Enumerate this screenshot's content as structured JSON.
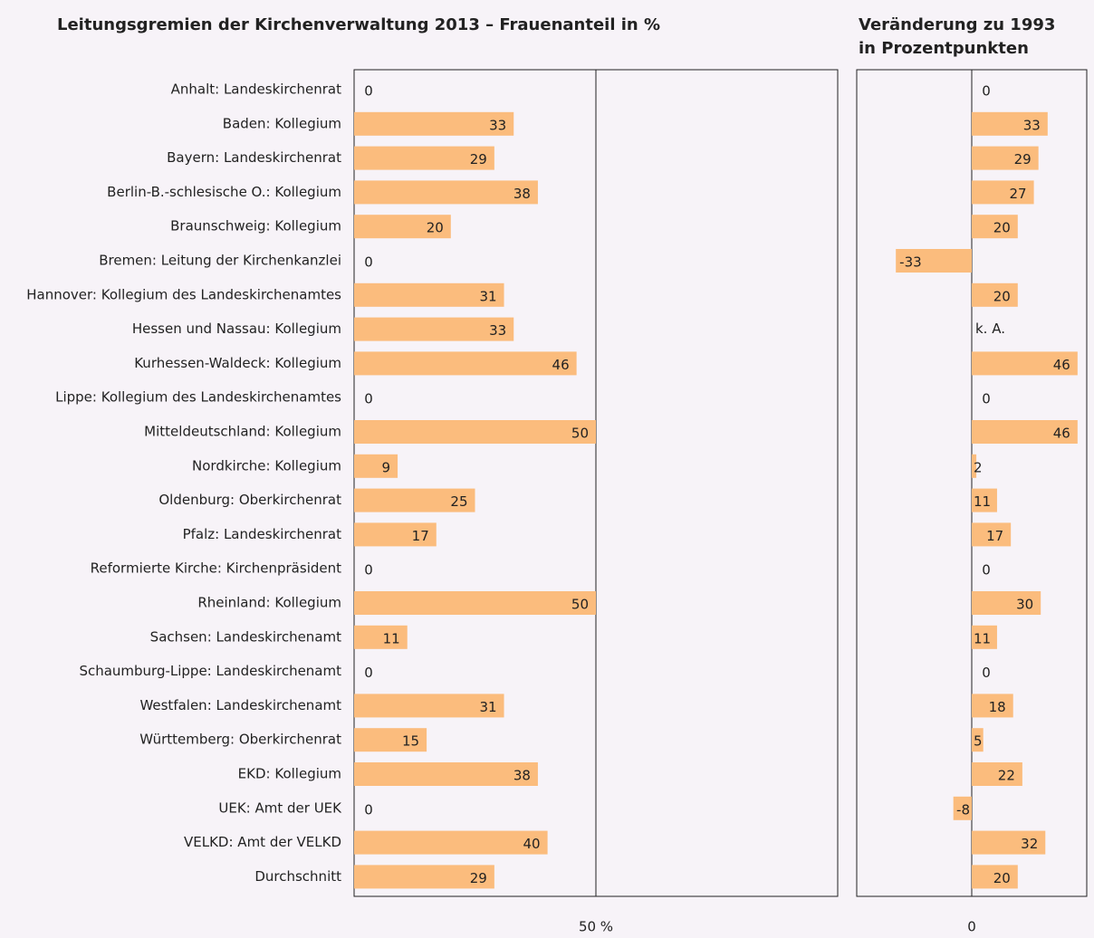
{
  "chart_data": [
    {
      "type": "bar",
      "orientation": "horizontal",
      "title": "Leitungsgremien der Kirchenverwaltung 2013 – Frauenanteil in %",
      "categories": [
        "Anhalt: Landeskirchenrat",
        "Baden: Kollegium",
        "Bayern: Landeskirchenrat",
        "Berlin-B.-schlesische O.: Kollegium",
        "Braunschweig: Kollegium",
        "Bremen: Leitung der Kirchenkanzlei",
        "Hannover: Kollegium des Landeskirchenamtes",
        "Hessen und Nassau: Kollegium",
        "Kurhessen-Waldeck: Kollegium",
        "Lippe: Kollegium des Landeskirchenamtes",
        "Mitteldeutschland: Kollegium",
        "Nordkirche: Kollegium",
        "Oldenburg: Oberkirchenrat",
        "Pfalz: Landeskirchenrat",
        "Reformierte Kirche: Kirchenpräsident",
        "Rheinland: Kollegium",
        "Sachsen: Landeskirchenamt",
        "Schaumburg-Lippe: Landeskirchenamt",
        "Westfalen: Landeskirchenamt",
        "Württemberg: Oberkirchenrat",
        "EKD: Kollegium",
        "UEK: Amt der UEK",
        "VELKD: Amt der VELKD",
        "Durchschnitt"
      ],
      "values": [
        0,
        33,
        29,
        38,
        20,
        0,
        31,
        33,
        46,
        0,
        50,
        9,
        25,
        17,
        0,
        50,
        11,
        0,
        31,
        15,
        38,
        0,
        40,
        29
      ],
      "color": "#fbbc7d",
      "xlim": [
        0,
        100
      ],
      "xticks": [
        {
          "value": 50,
          "label": "50 %"
        }
      ],
      "grid": true
    },
    {
      "type": "bar",
      "orientation": "horizontal",
      "title": "Veränderung zu 1993 in Prozentpunkten",
      "values": [
        0,
        33,
        29,
        27,
        20,
        -33,
        20,
        null,
        46,
        0,
        46,
        2,
        11,
        17,
        0,
        30,
        11,
        0,
        18,
        5,
        22,
        -8,
        32,
        20
      ],
      "value_labels": [
        null,
        null,
        null,
        null,
        null,
        null,
        null,
        "k. A.",
        null,
        null,
        null,
        null,
        null,
        null,
        null,
        null,
        null,
        null,
        null,
        null,
        null,
        null,
        null,
        null
      ],
      "color": "#fbbc7d",
      "xlim": [
        -50,
        50
      ],
      "xticks": [
        0
      ],
      "grid": true
    }
  ]
}
